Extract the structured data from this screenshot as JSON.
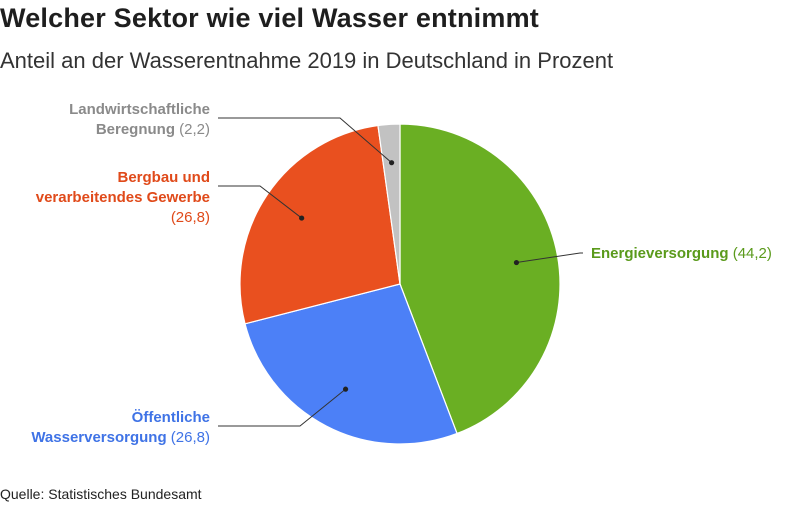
{
  "chart_data": {
    "type": "pie",
    "title": "Welcher Sektor wie viel Wasser entnimmt",
    "subtitle": "Anteil an der Wasserentnahme 2019 in Deutschland in Prozent",
    "source": "Quelle: Statistisches Bundesamt",
    "slices": [
      {
        "key": "energie",
        "label_lines": [
          "Energieversorgung"
        ],
        "value": 44.2,
        "value_text": "(44,2)",
        "color": "#6aaf23"
      },
      {
        "key": "oeffentlich",
        "label_lines": [
          "Öffentliche",
          "Wasserversorgung"
        ],
        "value": 26.8,
        "value_text": "(26,8)",
        "color": "#4c80f7"
      },
      {
        "key": "bergbau",
        "label_lines": [
          "Bergbau und",
          "verarbeitendes Gewerbe"
        ],
        "value": 26.8,
        "value_text": "(26,8)",
        "color": "#e9501f"
      },
      {
        "key": "landwirtschaft",
        "label_lines": [
          "Landwirtschaftliche",
          "Beregnung"
        ],
        "value": 2.2,
        "value_text": "(2,2)",
        "color": "#c2c2c2"
      }
    ],
    "label_colors": {
      "energie": "#5a9a1b",
      "oeffentlich": "#3f73e6",
      "bergbau": "#e04a1a",
      "landwirtschaft": "#8a8a8a"
    }
  }
}
